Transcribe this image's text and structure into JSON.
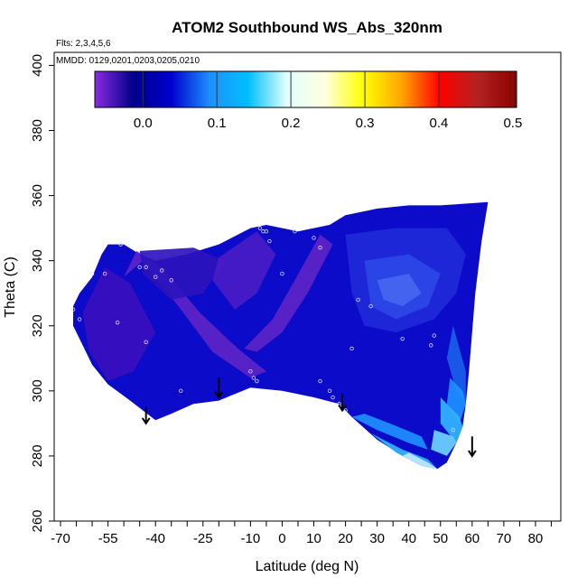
{
  "chart_data": {
    "type": "heatmap",
    "title": "ATOM2 Southbound WS_Abs_320nm",
    "annotations": [
      "Flts: 2,3,4,5,6",
      "MMDD: 0129,0201,0203,0205,0210"
    ],
    "xlabel": "Latitude (deg N)",
    "ylabel": "Theta (C)",
    "xlim": [
      -72,
      88
    ],
    "ylim": [
      260,
      404
    ],
    "x_ticks": [
      -70,
      -65,
      -60,
      -55,
      -50,
      -45,
      -40,
      -35,
      -30,
      -25,
      -20,
      -15,
      -10,
      -5,
      0,
      5,
      10,
      15,
      20,
      25,
      30,
      35,
      40,
      45,
      50,
      55,
      60,
      65,
      70,
      75,
      80,
      85
    ],
    "x_tick_labels": [
      "-70",
      "-55",
      "-40",
      "-25",
      "-10",
      "0",
      "10",
      "20",
      "30",
      "40",
      "50",
      "60",
      "70",
      "80"
    ],
    "x_tick_label_values": [
      -70,
      -55,
      -40,
      -25,
      -10,
      0,
      10,
      20,
      30,
      40,
      50,
      60,
      70,
      80
    ],
    "y_ticks": [
      260,
      280,
      300,
      320,
      340,
      360,
      380,
      400
    ],
    "y_tick_labels": [
      "260",
      "280",
      "300",
      "320",
      "340",
      "360",
      "380",
      "400"
    ],
    "colorbar": {
      "range": [
        -0.065,
        0.505
      ],
      "ticks": [
        0.0,
        0.1,
        0.2,
        0.3,
        0.4,
        0.5
      ],
      "tick_labels": [
        "0.0",
        "0.1",
        "0.2",
        "0.3",
        "0.4",
        "0.5"
      ],
      "colors": [
        "#8a2be2",
        "#00008b",
        "#0000cd",
        "#1e90ff",
        "#00bfff",
        "#e0ffff",
        "#ffffe0",
        "#ffff00",
        "#ffa500",
        "#ff0000",
        "#b22222",
        "#8b0000"
      ]
    },
    "grid": false,
    "field_boundary": [
      [
        -66,
        326
      ],
      [
        -64,
        330
      ],
      [
        -60,
        335
      ],
      [
        -57,
        342
      ],
      [
        -55,
        345
      ],
      [
        -50,
        345
      ],
      [
        -45,
        342
      ],
      [
        -40,
        340
      ],
      [
        -30,
        342
      ],
      [
        -20,
        345
      ],
      [
        -10,
        350
      ],
      [
        -5,
        351
      ],
      [
        5,
        349
      ],
      [
        10,
        350
      ],
      [
        15,
        351
      ],
      [
        20,
        354
      ],
      [
        30,
        356
      ],
      [
        40,
        357
      ],
      [
        50,
        357
      ],
      [
        65,
        358
      ],
      [
        64,
        352
      ],
      [
        63,
        346
      ],
      [
        62,
        338
      ],
      [
        61,
        330
      ],
      [
        60,
        318
      ],
      [
        59,
        306
      ],
      [
        58,
        296
      ],
      [
        57,
        289
      ],
      [
        55,
        284
      ],
      [
        52,
        278
      ],
      [
        49,
        276
      ],
      [
        44,
        277
      ],
      [
        38,
        280
      ],
      [
        30,
        285
      ],
      [
        22,
        292
      ],
      [
        18,
        296
      ],
      [
        10,
        298
      ],
      [
        0,
        300
      ],
      [
        -10,
        301
      ],
      [
        -20,
        297
      ],
      [
        -28,
        296
      ],
      [
        -35,
        293
      ],
      [
        -40,
        291
      ],
      [
        -48,
        297
      ],
      [
        -55,
        302
      ],
      [
        -60,
        308
      ],
      [
        -63,
        314
      ],
      [
        -66,
        320
      ]
    ],
    "field_zones": [
      {
        "color": "#3a0fbf",
        "polygon": [
          [
            -63,
            324
          ],
          [
            -56,
            338
          ],
          [
            -48,
            333
          ],
          [
            -40,
            318
          ],
          [
            -47,
            306
          ],
          [
            -55,
            303
          ],
          [
            -61,
            312
          ]
        ]
      },
      {
        "color": "#5e24c8",
        "polygon": [
          [
            -50,
            335
          ],
          [
            -44,
            340
          ],
          [
            -32,
            325
          ],
          [
            -22,
            312
          ],
          [
            -10,
            304
          ],
          [
            -5,
            306
          ],
          [
            -14,
            313
          ],
          [
            -26,
            324
          ],
          [
            -38,
            338
          ],
          [
            -46,
            343
          ]
        ]
      },
      {
        "color": "#5e24c8",
        "polygon": [
          [
            -8,
            312
          ],
          [
            0,
            318
          ],
          [
            8,
            330
          ],
          [
            16,
            345
          ],
          [
            12,
            348
          ],
          [
            4,
            334
          ],
          [
            -3,
            322
          ],
          [
            -12,
            313
          ]
        ]
      },
      {
        "color": "#2d13bd",
        "polygon": [
          [
            -45,
            343
          ],
          [
            -28,
            344
          ],
          [
            -18,
            340
          ],
          [
            -25,
            330
          ],
          [
            -35,
            328
          ],
          [
            -44,
            336
          ]
        ]
      },
      {
        "color": "#4a1cc6",
        "polygon": [
          [
            -20,
            341
          ],
          [
            -8,
            349
          ],
          [
            -2,
            342
          ],
          [
            -8,
            330
          ],
          [
            -15,
            325
          ],
          [
            -22,
            334
          ]
        ]
      },
      {
        "color": "#1f2ad8",
        "polygon": [
          [
            20,
            348
          ],
          [
            36,
            350
          ],
          [
            52,
            350
          ],
          [
            58,
            342
          ],
          [
            55,
            330
          ],
          [
            48,
            322
          ],
          [
            36,
            318
          ],
          [
            26,
            320
          ],
          [
            22,
            330
          ]
        ]
      },
      {
        "color": "#2b46e6",
        "polygon": [
          [
            26,
            340
          ],
          [
            40,
            342
          ],
          [
            50,
            336
          ],
          [
            46,
            326
          ],
          [
            36,
            322
          ],
          [
            28,
            326
          ]
        ]
      },
      {
        "color": "#4667f0",
        "polygon": [
          [
            30,
            334
          ],
          [
            40,
            336
          ],
          [
            44,
            330
          ],
          [
            38,
            326
          ],
          [
            32,
            328
          ]
        ]
      },
      {
        "color": "#1b5fe8",
        "polygon": [
          [
            54,
            320
          ],
          [
            58,
            306
          ],
          [
            58,
            296
          ],
          [
            55,
            300
          ],
          [
            52,
            310
          ]
        ]
      },
      {
        "color": "#1e90ff",
        "polygon": [
          [
            53,
            304
          ],
          [
            57,
            300
          ],
          [
            58,
            296
          ],
          [
            56,
            290
          ],
          [
            52,
            296
          ]
        ]
      },
      {
        "color": "#33b5ff",
        "polygon": [
          [
            50,
            298
          ],
          [
            56,
            292
          ],
          [
            57,
            289
          ],
          [
            55,
            284
          ],
          [
            50,
            290
          ]
        ]
      },
      {
        "color": "#6fd3ff",
        "polygon": [
          [
            48,
            288
          ],
          [
            54,
            286
          ],
          [
            55,
            284
          ],
          [
            52,
            280
          ],
          [
            47,
            282
          ]
        ]
      },
      {
        "color": "#1e90ff",
        "polygon": [
          [
            22,
            292
          ],
          [
            30,
            288
          ],
          [
            40,
            284
          ],
          [
            46,
            282
          ],
          [
            44,
            286
          ],
          [
            34,
            290
          ],
          [
            26,
            293
          ]
        ]
      },
      {
        "color": "#33b5ff",
        "polygon": [
          [
            28,
            287
          ],
          [
            38,
            282
          ],
          [
            46,
            279
          ],
          [
            49,
            276
          ],
          [
            44,
            277
          ],
          [
            36,
            281
          ]
        ]
      },
      {
        "color": "#bfe9ff",
        "polygon": [
          [
            38,
            280
          ],
          [
            44,
            277
          ],
          [
            49,
            276
          ],
          [
            46,
            278
          ],
          [
            40,
            281
          ]
        ]
      }
    ],
    "sample_points": [
      [
        -66,
        325
      ],
      [
        -64,
        322
      ],
      [
        -60,
        336
      ],
      [
        -56,
        336
      ],
      [
        -52,
        321
      ],
      [
        -51,
        345
      ],
      [
        -45,
        338
      ],
      [
        -43,
        338
      ],
      [
        -43,
        315
      ],
      [
        -40,
        335
      ],
      [
        -38,
        337
      ],
      [
        -35,
        334
      ],
      [
        -32,
        300
      ],
      [
        -10,
        306
      ],
      [
        -9,
        304
      ],
      [
        -8,
        303
      ],
      [
        -7,
        350
      ],
      [
        -6,
        349
      ],
      [
        -5,
        349
      ],
      [
        -4,
        346
      ],
      [
        0,
        336
      ],
      [
        4,
        349
      ],
      [
        10,
        347
      ],
      [
        12,
        344
      ],
      [
        12,
        303
      ],
      [
        15,
        300
      ],
      [
        16,
        298
      ],
      [
        18,
        296
      ],
      [
        20,
        294
      ],
      [
        22,
        313
      ],
      [
        24,
        328
      ],
      [
        28,
        326
      ],
      [
        38,
        316
      ],
      [
        47,
        314
      ],
      [
        48,
        317
      ],
      [
        54,
        288
      ]
    ],
    "arrows": [
      {
        "x": -43,
        "y_top": 295,
        "y_bottom": 290
      },
      {
        "x": -20,
        "y_top": 304,
        "y_bottom": 298
      },
      {
        "x": 19,
        "y_top": 299,
        "y_bottom": 294
      },
      {
        "x": 60,
        "y_top": 286,
        "y_bottom": 280
      }
    ]
  }
}
